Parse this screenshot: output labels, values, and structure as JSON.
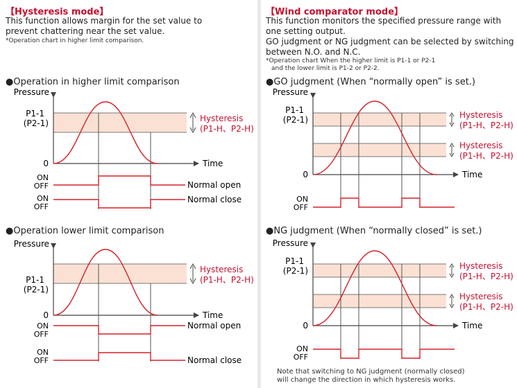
{
  "left": {
    "title_bracket_open": "【",
    "title": "Hysteresis mode",
    "title_bracket_close": "】",
    "desc_line1": "This function allows margin for the set value to",
    "desc_line2": "prevent chattering near the set value.",
    "note": "*Operation chart in higher limit comparison.",
    "sections": [
      {
        "heading": "●Operation in higher limit comparison",
        "pressure_label": "Pressure",
        "setpoint_line1": "P1-1",
        "setpoint_line2": "(P2-1)",
        "zero_label": "0",
        "time_label": "Time",
        "hysteresis_label": "Hysteresis",
        "hysteresis_sub": "(P1-H、P2-H)",
        "outputs": [
          {
            "on": "ON",
            "off": "OFF",
            "label": "Normal open"
          },
          {
            "on": "ON",
            "off": "OFF",
            "label": "Normal close"
          }
        ]
      },
      {
        "heading": "●Operation lower limit comparison",
        "pressure_label": "Pressure",
        "setpoint_line1": "P1-1",
        "setpoint_line2": "(P2-1)",
        "zero_label": "0",
        "time_label": "Time",
        "hysteresis_label": "Hysteresis",
        "hysteresis_sub": "(P1-H、P2-H)",
        "outputs": [
          {
            "on": "ON",
            "off": "OFF",
            "label": "Normal open"
          },
          {
            "on": "ON",
            "off": "OFF",
            "label": "Normal close"
          }
        ]
      }
    ]
  },
  "right": {
    "title_bracket_open": "【",
    "title": "Wind comparator mode",
    "title_bracket_close": "】",
    "desc_line1": "This function monitors the specified pressure range with",
    "desc_line2": "one setting output.",
    "desc_line3": "GO judgment or NG judgment can be selected by switching",
    "desc_line4": "between N.O. and N.C.",
    "note_line1": "*Operation chart When the higher limit is P1-1 or P2-1",
    "note_line2": "and the lower limit is P1-2 or P2-2.",
    "sections": [
      {
        "heading": "●GO judgment (When “normally open” is set.)",
        "pressure_label": "Pressure",
        "setpoint_line1": "P1-1",
        "setpoint_line2": "(P2-1)",
        "zero_label": "0",
        "time_label": "Time",
        "hysteresis_label": "Hysteresis",
        "hysteresis_sub": "(P1-H、P2-H)",
        "on": "ON",
        "off": "OFF"
      },
      {
        "heading": "●NG judgment (When “normally closed” is set.)",
        "pressure_label": "Pressure",
        "setpoint_line1": "P1-1",
        "setpoint_line2": "(P2-1)",
        "zero_label": "0",
        "time_label": "Time",
        "hysteresis_label": "Hysteresis",
        "hysteresis_sub": "(P1-H、P2-H)",
        "on": "ON",
        "off": "OFF"
      }
    ],
    "footnote_line1": "Note that switching to NG judgment (normally closed)",
    "footnote_line2": "will change the direction in which hysteresis works."
  },
  "colors": {
    "accent": "#c8102e",
    "band": "#fbe1d4",
    "wave": "#d62028",
    "axis": "#444444",
    "guide": "#777777"
  }
}
